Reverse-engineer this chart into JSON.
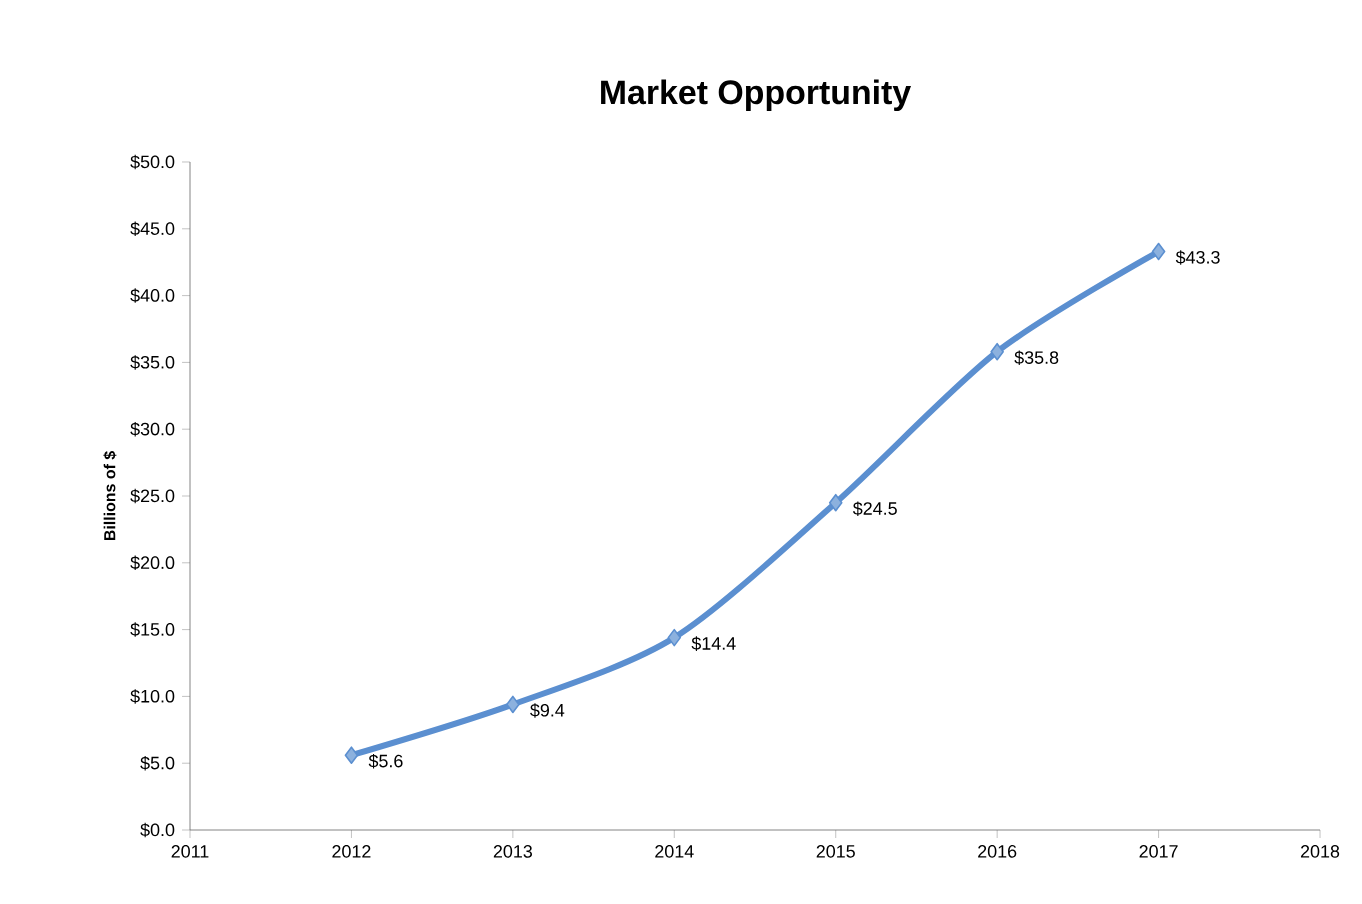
{
  "chart_data": {
    "type": "line",
    "title": "Market Opportunity",
    "ylabel": "Billions of $",
    "x": [
      2012,
      2013,
      2014,
      2015,
      2016,
      2017
    ],
    "series": [
      {
        "color": "#5b8fd0",
        "values": [
          5.6,
          9.4,
          14.4,
          24.5,
          35.8,
          43.3
        ]
      }
    ],
    "value_labels": [
      "$5.6",
      "$9.4",
      "$14.4",
      "$24.5",
      "$35.8",
      "$43.3"
    ],
    "xlim": [
      2011,
      2018
    ],
    "xticks": [
      2011,
      2012,
      2013,
      2014,
      2015,
      2016,
      2017,
      2018
    ],
    "ylim": [
      0,
      50
    ],
    "yticks": [
      {
        "value": 0,
        "label": "$0.0"
      },
      {
        "value": 5,
        "label": "$5.0"
      },
      {
        "value": 10,
        "label": "$10.0"
      },
      {
        "value": 15,
        "label": "$15.0"
      },
      {
        "value": 20,
        "label": "$20.0"
      },
      {
        "value": 25,
        "label": "$25.0"
      },
      {
        "value": 30,
        "label": "$30.0"
      },
      {
        "value": 35,
        "label": "$35.0"
      },
      {
        "value": 40,
        "label": "$40.0"
      },
      {
        "value": 45,
        "label": "$45.0"
      },
      {
        "value": 50,
        "label": "$50.0"
      }
    ],
    "marker": "diamond",
    "line_style": "solid"
  }
}
